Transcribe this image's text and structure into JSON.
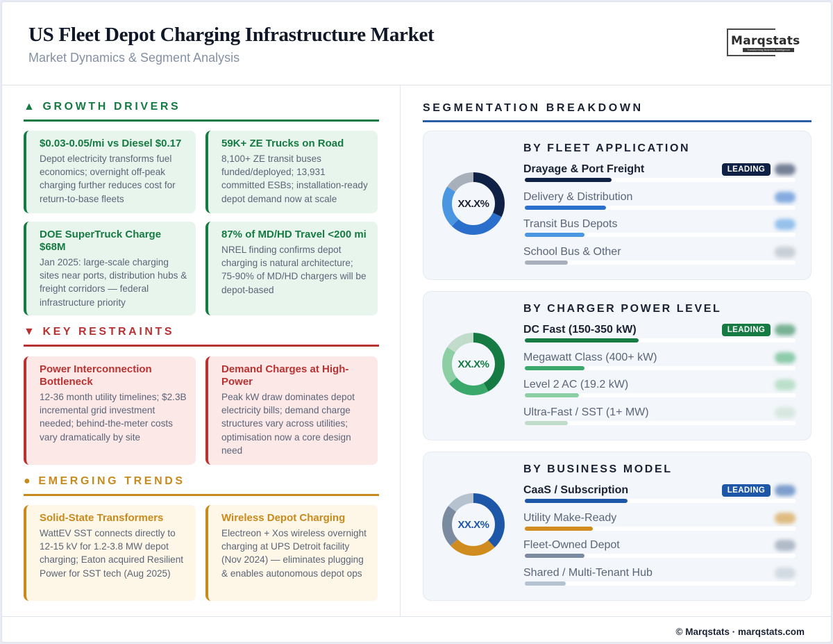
{
  "header": {
    "title": "US Fleet Depot Charging Infrastructure Market",
    "subtitle": "Market Dynamics & Segment Analysis",
    "logo": {
      "name": "Marqstats",
      "tagline": "Transforming Business Intelligence"
    }
  },
  "left": {
    "growth_drivers": {
      "icon": "▲",
      "heading": "GROWTH DRIVERS",
      "color": "#167a43",
      "cards": [
        {
          "title": "$0.03-0.05/mi vs Diesel $0.17",
          "body": "Depot electricity transforms fuel economics; overnight off-peak charging further reduces cost for return-to-base fleets"
        },
        {
          "title": "59K+ ZE Trucks on Road",
          "body": "8,100+ ZE transit buses funded/deployed; 13,931 committed ESBs; installation-ready depot demand now at scale"
        },
        {
          "title": "DOE SuperTruck Charge $68M",
          "body": "Jan 2025: large-scale charging sites near ports, distribution hubs & freight corridors — federal infrastructure priority"
        },
        {
          "title": "87% of MD/HD Travel <200 mi",
          "body": "NREL finding confirms depot charging is natural architecture; 75-90% of MD/HD chargers will be depot-based"
        }
      ]
    },
    "key_restraints": {
      "icon": "▼",
      "heading": "KEY RESTRAINTS",
      "color": "#b83232",
      "cards": [
        {
          "title": "Power Interconnection Bottleneck",
          "body": "12-36 month utility timelines; $2.3B incremental grid investment needed; behind-the-meter costs vary dramatically by site"
        },
        {
          "title": "Demand Charges at High-Power",
          "body": "Peak kW draw dominates depot electricity bills; demand charge structures vary across utilities; optimisation now a core design need"
        }
      ]
    },
    "emerging_trends": {
      "icon": "●",
      "heading": "EMERGING TRENDS",
      "color": "#c88a1c",
      "cards": [
        {
          "title": "Solid-State Transformers",
          "body": "WattEV SST connects directly to 12-15 kV for 1.2-3.8 MW depot charging; Eaton acquired Resilient Power for SST tech (Aug 2025)"
        },
        {
          "title": "Wireless Depot Charging",
          "body": "Electreon + Xos wireless overnight charging at UPS Detroit facility (Nov 2024) — eliminates plugging & enables autonomous depot ops"
        }
      ]
    }
  },
  "segmentation": {
    "heading": "SEGMENTATION BREAKDOWN",
    "badge_label": "LEADING",
    "panels": [
      {
        "title": "BY FLEET APPLICATION",
        "center_label": "XX.X%",
        "center_color": "#1a2233",
        "items": [
          {
            "label": "Drayage & Port Freight",
            "share": 32,
            "color": "#0f2145",
            "leading": true
          },
          {
            "label": "Delivery & Distribution",
            "share": 30,
            "color": "#2a6fcb"
          },
          {
            "label": "Transit Bus Depots",
            "share": 22,
            "color": "#4a96e0"
          },
          {
            "label": "School Bus & Other",
            "share": 16,
            "color": "#a7b0bb"
          }
        ]
      },
      {
        "title": "BY CHARGER POWER LEVEL",
        "center_label": "XX.X%",
        "center_color": "#167a43",
        "items": [
          {
            "label": "DC Fast (150-350 kW)",
            "share": 42,
            "color": "#167a43",
            "leading": true
          },
          {
            "label": "Megawatt Class (400+ kW)",
            "share": 22,
            "color": "#3aa86a"
          },
          {
            "label": "Level 2 AC (19.2 kW)",
            "share": 20,
            "color": "#8ccfa5"
          },
          {
            "label": "Ultra-Fast / SST (1+ MW)",
            "share": 16,
            "color": "#c2dccb"
          }
        ]
      },
      {
        "title": "BY BUSINESS MODEL",
        "center_label": "XX.X%",
        "center_color": "#1e56a8",
        "items": [
          {
            "label": "CaaS / Subscription",
            "share": 38,
            "color": "#1e56a8",
            "leading": true
          },
          {
            "label": "Utility Make-Ready",
            "share": 25,
            "color": "#d08c1e"
          },
          {
            "label": "Fleet-Owned Depot",
            "share": 22,
            "color": "#7a8ba0"
          },
          {
            "label": "Shared / Multi-Tenant Hub",
            "share": 15,
            "color": "#b6c2cf"
          }
        ]
      }
    ]
  },
  "footer": {
    "text": "© Marqstats · marqstats.com"
  }
}
